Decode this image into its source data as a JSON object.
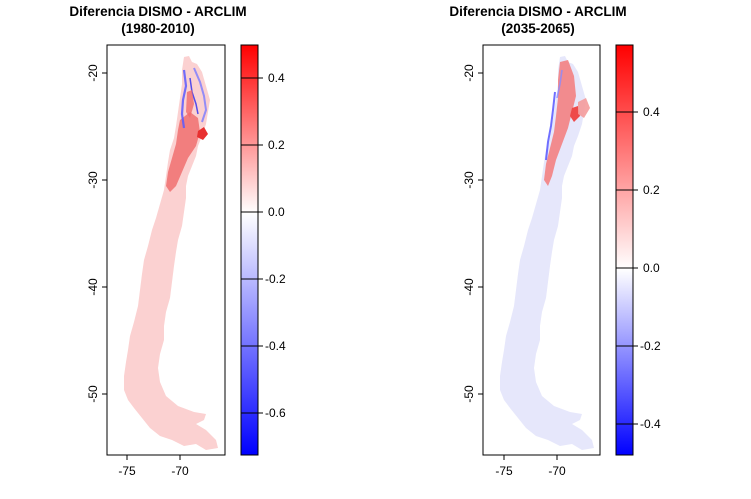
{
  "panels": [
    {
      "title_line1": "Diferencia DISMO - ARCLIM",
      "title_line2": "(1980-2010)",
      "y_ticks": [
        "-20",
        "-30",
        "-40",
        "-50"
      ],
      "x_ticks": [
        "-75",
        "-70"
      ],
      "legend": {
        "ticks": [
          "0.4",
          "0.2",
          "0.0",
          "-0.2",
          "-0.4",
          "-0.6"
        ],
        "range": [
          -0.72,
          0.5
        ],
        "colors": [
          "#0000ff",
          "#ffffff",
          "#ff0000"
        ]
      },
      "map_fill": "#fbd1d1"
    },
    {
      "title_line1": "Diferencia DISMO - ARCLIM",
      "title_line2": "(2035-2065)",
      "y_ticks": [
        "-20",
        "-30",
        "-40",
        "-50"
      ],
      "x_ticks": [
        "-75",
        "-70"
      ],
      "legend": {
        "ticks": [
          "0.4",
          "0.2",
          "0.0",
          "-0.2",
          "-0.4"
        ],
        "range": [
          -0.48,
          0.58
        ],
        "colors": [
          "#0000ff",
          "#ffffff",
          "#ff0000"
        ]
      },
      "map_fill": "#e6e7fb"
    }
  ]
}
